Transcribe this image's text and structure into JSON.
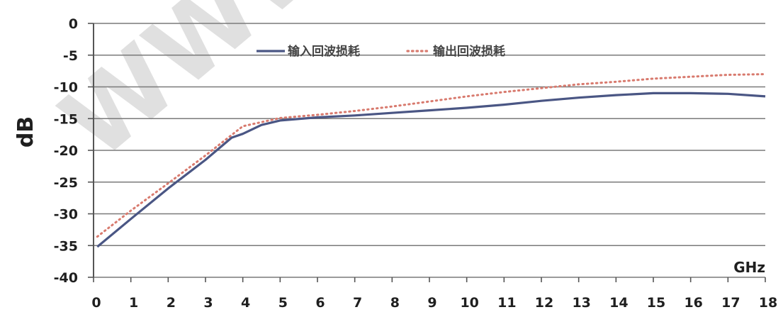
{
  "chart_data": {
    "type": "line",
    "title": "",
    "xlabel": "GHz",
    "ylabel": "dB",
    "xlim": [
      0,
      18
    ],
    "ylim": [
      -40,
      0
    ],
    "xticks": [
      "0",
      "1",
      "2",
      "3",
      "4",
      "5",
      "6",
      "7",
      "8",
      "9",
      "10",
      "11",
      "12",
      "13",
      "14",
      "15",
      "16",
      "17",
      "18"
    ],
    "yticks": [
      "0",
      "-5",
      "-10",
      "-15",
      "-20",
      "-25",
      "-30",
      "-35",
      "-40"
    ],
    "grid": "horizontal",
    "legend_position": "top-center",
    "series": [
      {
        "name": "输入回波损耗",
        "color": "#4a5684",
        "style": "solid",
        "x": [
          0.1,
          1,
          2,
          3,
          3.7,
          4.0,
          4.5,
          5,
          6,
          7,
          8,
          9,
          10,
          11,
          12,
          13,
          14,
          15,
          16,
          17,
          18
        ],
        "y": [
          -35.2,
          -30.8,
          -26.0,
          -21.5,
          -18.0,
          -17.4,
          -16.0,
          -15.3,
          -14.8,
          -14.5,
          -14.1,
          -13.7,
          -13.3,
          -12.8,
          -12.2,
          -11.7,
          -11.3,
          -11.0,
          -11.0,
          -11.1,
          -11.5
        ]
      },
      {
        "name": "输出回波损耗",
        "color": "#d87a6e",
        "style": "dotted",
        "x": [
          0.1,
          1,
          2,
          3,
          4,
          5,
          6,
          7,
          8,
          9,
          10,
          11,
          12,
          13,
          14,
          15,
          16,
          17,
          18
        ],
        "y": [
          -33.6,
          -29.5,
          -25.2,
          -20.8,
          -16.2,
          -14.9,
          -14.4,
          -13.8,
          -13.1,
          -12.3,
          -11.5,
          -10.8,
          -10.2,
          -9.6,
          -9.2,
          -8.7,
          -8.4,
          -8.1,
          -8.0
        ]
      }
    ]
  },
  "watermark_text": "WWW"
}
